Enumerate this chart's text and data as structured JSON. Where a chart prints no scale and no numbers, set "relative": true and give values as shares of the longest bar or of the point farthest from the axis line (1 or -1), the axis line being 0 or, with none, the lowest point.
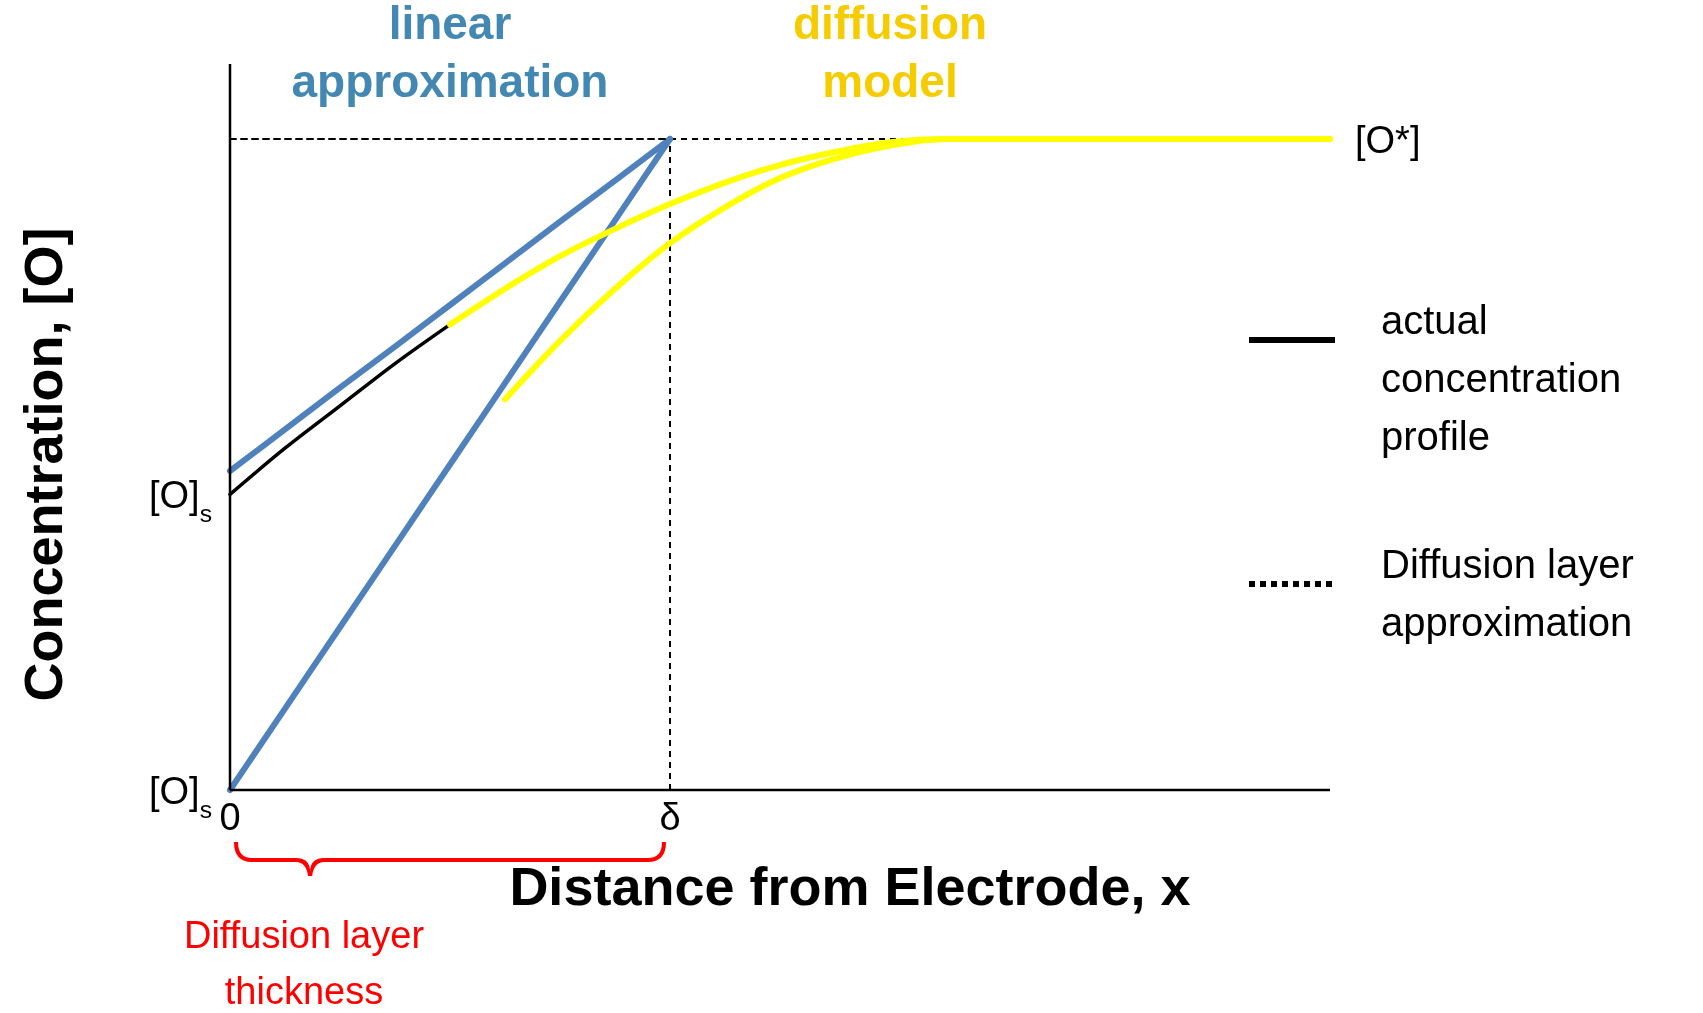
{
  "chart_data": {
    "type": "line",
    "relative": true,
    "xlabel": "Distance from Electrode, x",
    "ylabel": "Concentration, [O]",
    "legend": "right",
    "categories": [
      "0",
      null,
      null,
      null,
      null,
      null,
      null,
      null,
      "δ",
      null,
      null,
      null,
      null,
      null,
      null,
      null,
      null,
      null,
      null,
      null,
      null
    ],
    "annotations": [
      {
        "text": "[O]$_{s}$",
        "x": "0",
        "y": 0.454
      },
      {
        "text": "[O]$_{s}$",
        "x": "0",
        "y": 0
      },
      "Diffusion layer thickness"
    ],
    "ref_lines": [
      {
        "axis": "x",
        "value": "δ",
        "line_style": "dotted",
        "color": "#000000"
      },
      {
        "axis": "y",
        "value": 1,
        "label": "[O*]",
        "line_style": "dotted",
        "color": "#000000"
      }
    ],
    "series": [
      {
        "name": "actual concentration profile",
        "color": "#000000",
        "line_style": "solid",
        "values": [
          0.454,
          0.525,
          0.59,
          0.655,
          0.715,
          null,
          null,
          null,
          null,
          null,
          null,
          null,
          null,
          null,
          null,
          null,
          null,
          null,
          null,
          null,
          null
        ]
      },
      {
        "color": "#4f81bd",
        "name": "linear approximation",
        "values": [
          0.49,
          0.554,
          0.618,
          0.681,
          0.745,
          0.809,
          0.873,
          0.936,
          1,
          null,
          null,
          null,
          null,
          null,
          null,
          null,
          null,
          null,
          null,
          null,
          null
        ]
      },
      {
        "color": "#4f81bd",
        "values": [
          0,
          0.125,
          0.25,
          0.375,
          0.5,
          0.625,
          0.75,
          0.875,
          1,
          null,
          null,
          null,
          null,
          null,
          null,
          null,
          null,
          null,
          null,
          null,
          null
        ]
      },
      {
        "color": "#ffff00",
        "name": "diffusion model",
        "values": [
          null,
          null,
          null,
          null,
          0.715,
          0.77,
          0.82,
          0.862,
          0.9,
          0.933,
          0.96,
          0.98,
          0.995,
          1,
          1,
          1,
          1,
          1,
          1,
          1,
          1
        ]
      },
      {
        "color": "#ffff00",
        "values": [
          null,
          null,
          null,
          null,
          null,
          0.6,
          0.69,
          0.77,
          0.84,
          0.895,
          0.94,
          0.97,
          0.99,
          1,
          1,
          1,
          1,
          1,
          1,
          1,
          1
        ]
      },
      {
        "name": "Diffusion layer approximation",
        "color": "#000000",
        "line_style": "dotted",
        "values": [
          1,
          1,
          1,
          1,
          1,
          1,
          1,
          1,
          1,
          null,
          null,
          null,
          null,
          null,
          null,
          null,
          null,
          null,
          null,
          null,
          null
        ]
      }
    ]
  }
}
